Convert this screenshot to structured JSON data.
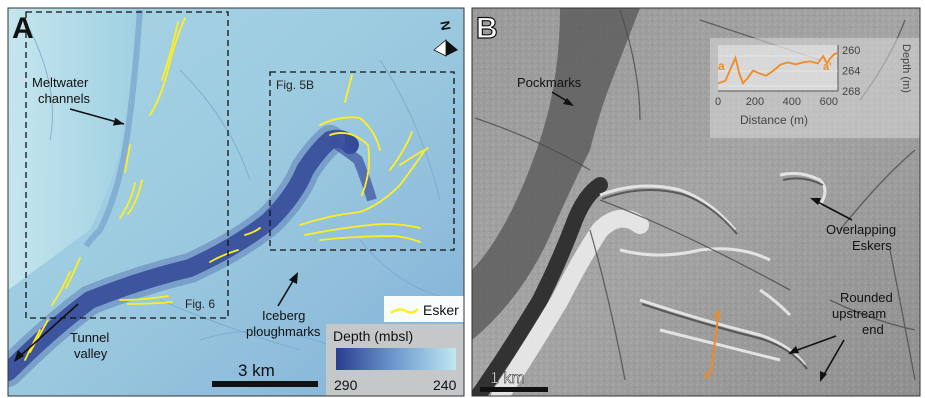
{
  "panel_a": {
    "letter": "A",
    "labels": {
      "meltwater": [
        "Meltwater",
        "channels"
      ],
      "fig5b": "Fig. 5B",
      "fig6": "Fig. 6",
      "iceberg": [
        "Iceberg",
        "ploughmarks"
      ],
      "tunnel": [
        "Tunnel",
        "valley"
      ]
    },
    "north": "N",
    "legend_esker": "Esker",
    "depth_legend": {
      "title": "Depth (mbsl)",
      "min_label": "290",
      "max_label": "240",
      "color_deep": "#2a3d8f",
      "color_shallow": "#bfe8f0"
    },
    "scale_bar": "3 km",
    "esker_color": "#ffee22"
  },
  "panel_b": {
    "letter": "B",
    "labels": {
      "pockmarks": "Pockmarks",
      "overlapping": [
        "Overlapping",
        "Eskers"
      ],
      "rounded": [
        "Rounded",
        "upstream",
        "end"
      ]
    },
    "profile_start": "a",
    "profile_end": "a'",
    "profile_color": "#f08a24",
    "scale_bar": "1 km",
    "inset": {
      "xlabel": "Distance (m)",
      "ylabel": "Depth (m)",
      "xticks": [
        "0",
        "200",
        "400",
        "600"
      ],
      "yticks": [
        "260",
        "264",
        "268"
      ],
      "start_label": "a",
      "end_label": "a'"
    }
  },
  "chart_data": {
    "type": "line",
    "title": "",
    "xlabel": "Distance (m)",
    "ylabel": "Depth (m)",
    "xlim": [
      0,
      650
    ],
    "ylim": [
      268,
      259
    ],
    "series": [
      {
        "x": [
          0,
          40,
          70,
          95,
          115,
          135,
          160,
          190,
          220,
          260,
          300,
          340,
          380,
          420,
          460,
          500,
          540,
          570,
          590,
          610,
          630,
          650
        ],
        "values": [
          266.5,
          266.0,
          263.5,
          261.5,
          264.5,
          266.5,
          265.5,
          264.0,
          264.5,
          265.0,
          264.0,
          262.8,
          262.4,
          262.8,
          262.4,
          262.2,
          262.6,
          261.2,
          262.6,
          261.5,
          260.8,
          260.5
        ]
      }
    ]
  }
}
